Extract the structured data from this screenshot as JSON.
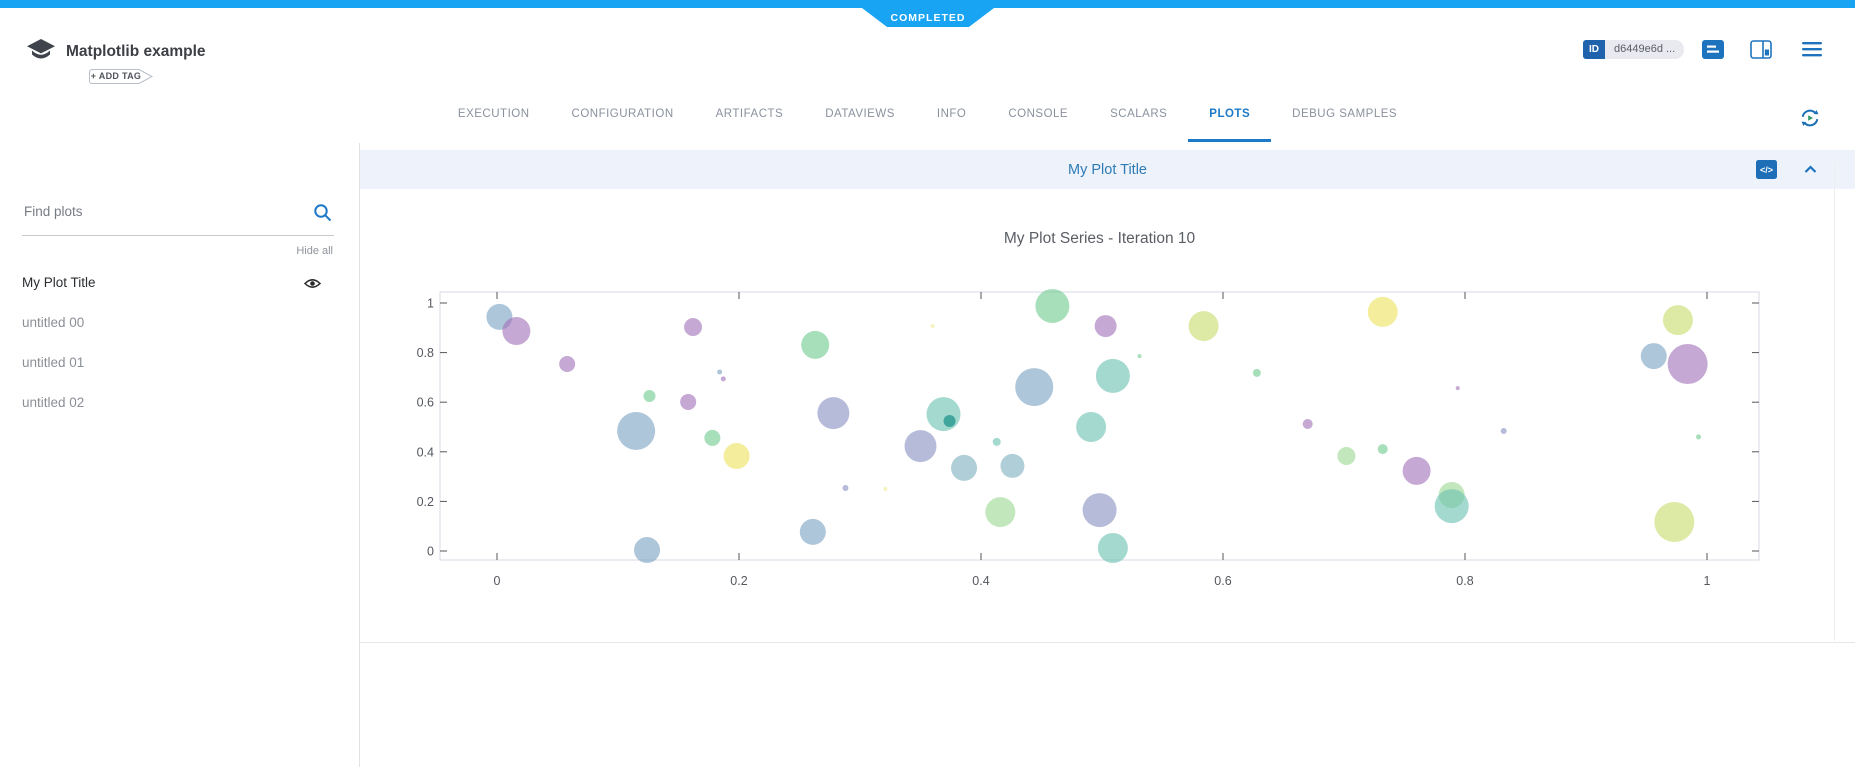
{
  "status_badge": "COMPLETED",
  "header": {
    "title": "Matplotlib example",
    "add_tag_label": "+ ADD TAG",
    "id_label": "ID",
    "id_value": "d6449e6d ..."
  },
  "tabs": {
    "items": [
      "EXECUTION",
      "CONFIGURATION",
      "ARTIFACTS",
      "DATAVIEWS",
      "INFO",
      "CONSOLE",
      "SCALARS",
      "PLOTS",
      "DEBUG SAMPLES"
    ],
    "active": "PLOTS"
  },
  "sidebar": {
    "search_placeholder": "Find plots",
    "hide_all_label": "Hide all",
    "items": [
      {
        "label": "My Plot Title",
        "active": true,
        "visible_icon": "eye-icon"
      },
      {
        "label": "untitled 00",
        "active": false
      },
      {
        "label": "untitled 01",
        "active": false
      },
      {
        "label": "untitled 02",
        "active": false
      }
    ]
  },
  "panel": {
    "title": "My Plot Title"
  },
  "chart_data": {
    "type": "scatter",
    "title": "My Plot Series - Iteration 10",
    "xlabel": "",
    "ylabel": "",
    "xlim": [
      -0.047,
      1.043
    ],
    "ylim": [
      -0.036,
      1.044
    ],
    "x_ticks": [
      0,
      0.2,
      0.4,
      0.6,
      0.8,
      1
    ],
    "y_ticks": [
      0,
      0.2,
      0.4,
      0.6,
      0.8,
      1
    ],
    "x_tick_labels": [
      "0",
      "0.2",
      "0.4",
      "0.6",
      "0.8",
      "1"
    ],
    "y_tick_labels": [
      "0",
      "0.2",
      "0.4",
      "0.6",
      "0.8",
      "1"
    ],
    "grid": false,
    "legend": false,
    "marker_opacity": 0.62,
    "palette": {
      "blue": "#7da3c4",
      "cadet": "#7fb0bf",
      "teal": "#6cc2b2",
      "tealdark": "#2f9b93",
      "indigo": "#8791c2",
      "purple": "#a273b8",
      "green": "#6fcb8f",
      "lightgreen": "#9cd994",
      "yellow": "#ece25f",
      "lime": "#c8dd70"
    },
    "points": [
      [
        0.002,
        0.944,
        13,
        "blue"
      ],
      [
        0.016,
        0.887,
        14,
        "purple"
      ],
      [
        0.058,
        0.754,
        8,
        "purple"
      ],
      [
        0.126,
        0.625,
        6,
        "green"
      ],
      [
        0.115,
        0.484,
        19,
        "blue"
      ],
      [
        0.158,
        0.601,
        8,
        "purple"
      ],
      [
        0.162,
        0.903,
        9,
        "purple"
      ],
      [
        0.184,
        0.722,
        2.5,
        "blue"
      ],
      [
        0.187,
        0.694,
        2.5,
        "purple"
      ],
      [
        0.198,
        0.383,
        13,
        "yellow"
      ],
      [
        0.124,
        0.004,
        13,
        "blue"
      ],
      [
        0.178,
        0.456,
        8,
        "green"
      ],
      [
        0.263,
        0.831,
        14,
        "green"
      ],
      [
        0.278,
        0.556,
        16,
        "indigo"
      ],
      [
        0.261,
        0.077,
        13,
        "blue"
      ],
      [
        0.288,
        0.254,
        3,
        "indigo"
      ],
      [
        0.321,
        0.25,
        2,
        "yellow",
        0.4
      ],
      [
        0.36,
        0.907,
        2,
        "yellow",
        0.4
      ],
      [
        0.35,
        0.423,
        16,
        "indigo"
      ],
      [
        0.369,
        0.552,
        17,
        "teal"
      ],
      [
        0.374,
        0.524,
        6,
        "tealdark",
        0.85
      ],
      [
        0.386,
        0.335,
        13,
        "cadet"
      ],
      [
        0.413,
        0.44,
        4,
        "teal"
      ],
      [
        0.426,
        0.343,
        12,
        "cadet"
      ],
      [
        0.444,
        0.661,
        19,
        "blue"
      ],
      [
        0.459,
        0.988,
        17,
        "green"
      ],
      [
        0.491,
        0.5,
        15,
        "teal"
      ],
      [
        0.416,
        0.157,
        15,
        "lightgreen"
      ],
      [
        0.498,
        0.165,
        17,
        "indigo"
      ],
      [
        0.509,
        0.012,
        15,
        "teal"
      ],
      [
        0.509,
        0.706,
        17,
        "teal"
      ],
      [
        0.531,
        0.786,
        2,
        "green"
      ],
      [
        0.503,
        0.907,
        11,
        "purple"
      ],
      [
        0.584,
        0.907,
        15,
        "lime"
      ],
      [
        0.628,
        0.718,
        4,
        "green"
      ],
      [
        0.67,
        0.512,
        5,
        "purple"
      ],
      [
        0.732,
        0.964,
        15,
        "yellow"
      ],
      [
        0.702,
        0.383,
        9,
        "lightgreen"
      ],
      [
        0.732,
        0.411,
        5,
        "green"
      ],
      [
        0.76,
        0.323,
        14,
        "purple"
      ],
      [
        0.789,
        0.226,
        13,
        "lightgreen"
      ],
      [
        0.789,
        0.181,
        17,
        "teal"
      ],
      [
        0.794,
        0.657,
        2,
        "purple"
      ],
      [
        0.832,
        0.484,
        3,
        "indigo"
      ],
      [
        0.993,
        0.46,
        2.5,
        "green"
      ],
      [
        0.973,
        0.117,
        20,
        "lime"
      ],
      [
        0.976,
        0.931,
        15,
        "lime"
      ],
      [
        0.956,
        0.786,
        13,
        "blue"
      ],
      [
        0.984,
        0.754,
        20,
        "purple"
      ]
    ]
  }
}
